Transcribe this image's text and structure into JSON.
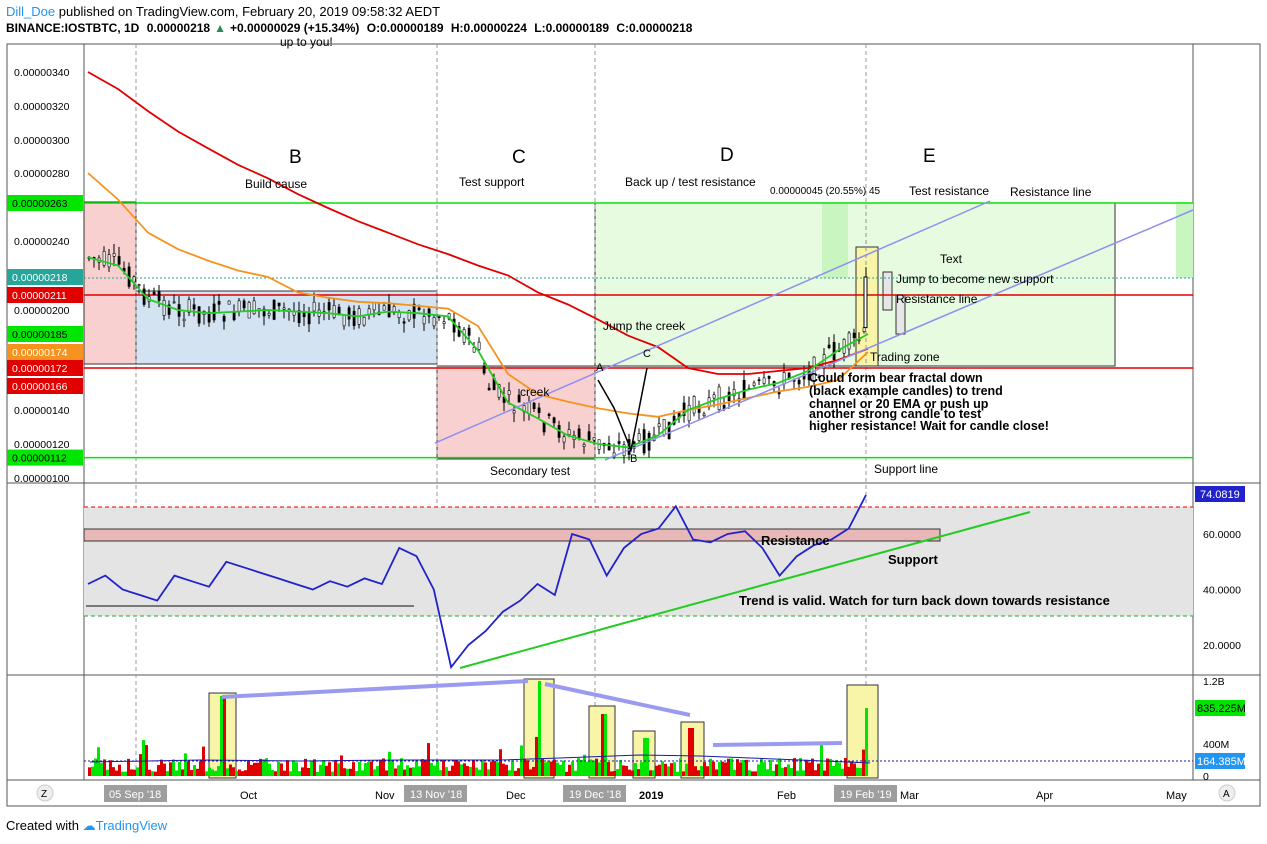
{
  "header": {
    "user": "Dill_Doe",
    "published": "published on TradingView.com, February 20, 2019 09:58:32 AEDT",
    "symbol": "BINANCE:IOSTBTC, 1D",
    "last": "0.00000218",
    "change_arrow": "▲",
    "change": "+0.00000029 (+15.34%)",
    "o_label": "O:",
    "o": "0.00000189",
    "h_label": "H:",
    "h": "0.00000224",
    "l_label": "L:",
    "l": "0.00000189",
    "c_label": "C:",
    "c": "0.00000218"
  },
  "top_cut_text": "up to you!",
  "colors": {
    "green_line": "#00e600",
    "red_line": "#e00000",
    "ema_fast": "#22cc22",
    "ema_mid": "#f5931e",
    "ema_slow": "#e00000",
    "channel": "#8f8ff0",
    "rsi": "#2222cc",
    "highlight_blue": "#2196f3"
  },
  "chart_data": [
    {
      "type": "line",
      "title": "",
      "ylim": [
        1e-06,
        3.5e-06
      ],
      "y_ticks": [
        "0.00000340",
        "0.00000320",
        "0.00000300",
        "0.00000280",
        "0.00000240",
        "0.00000200",
        "0.00000140",
        "0.00000120",
        "0.00000100"
      ],
      "price_badges": [
        {
          "label": "0.00000263",
          "value": 2.63e-06,
          "color": "#00e600"
        },
        {
          "label": "0.00000218",
          "value": 2.18e-06,
          "color": "#26a69a"
        },
        {
          "label": "0.00000211",
          "value": 2.11e-06,
          "color": "#e00000"
        },
        {
          "label": "0.00000185",
          "value": 1.85e-06,
          "color": "#00e600"
        },
        {
          "label": "0.00000174",
          "value": 1.74e-06,
          "color": "#f5931e"
        },
        {
          "label": "0.00000172",
          "value": 1.72e-06,
          "color": "#e00000"
        },
        {
          "label": "0.00000166",
          "value": 1.66e-06,
          "color": "#e00000"
        },
        {
          "label": "0.00000112",
          "value": 1.12e-06,
          "color": "#00e600"
        }
      ],
      "horizontal_lines": [
        {
          "value": 2.63e-06,
          "color": "#00e600"
        },
        {
          "value": 2.11e-06,
          "color": "#e00000"
        },
        {
          "value": 1.72e-06,
          "color": "#e00000"
        },
        {
          "value": 1.12e-06,
          "color": "#00e600"
        }
      ],
      "series": [
        {
          "values": [
            3.43e-06,
            3.3e-06,
            3.17e-06,
            3.05e-06,
            2.95e-06,
            2.85e-06,
            2.77e-06,
            2.68e-06,
            2.6e-06,
            2.52e-06,
            2.45e-06,
            2.38e-06,
            2.32e-06,
            2.25e-06,
            2.19e-06,
            2.12e-06,
            2.04e-06,
            1.94e-06,
            1.84e-06,
            1.77e-06,
            1.72e-06,
            1.7e-06,
            1.7e-06,
            1.71e-06,
            1.72e-06,
            1.73e-06,
            1.76e-06
          ]
        },
        {
          "values": [
            2.8e-06,
            2.65e-06,
            2.45e-06,
            2.35e-06,
            2.28e-06,
            2.22e-06,
            2.18e-06,
            2.12e-06,
            2.09e-06,
            2.06e-06,
            2.05e-06,
            2.03e-06,
            2.01e-06,
            1.9e-06,
            1.7e-06,
            1.57e-06,
            1.49e-06,
            1.42e-06,
            1.38e-06,
            1.36e-06,
            1.4e-06,
            1.46e-06,
            1.53e-06,
            1.6e-06,
            1.65e-06,
            1.68e-06,
            1.74e-06
          ]
        },
        {
          "values": [
            2.3e-06,
            2.25e-06,
            2.08e-06,
            2e-06,
            1.98e-06,
            1.99e-06,
            2e-06,
            1.99e-06,
            1.98e-06,
            1.96e-06,
            1.99e-06,
            1.98e-06,
            1.96e-06,
            1.75e-06,
            1.48e-06,
            1.35e-06,
            1.25e-06,
            1.2e-06,
            1.18e-06,
            1.25e-06,
            1.4e-06,
            1.52e-06,
            1.62e-06,
            1.67e-06,
            1.71e-06,
            1.75e-06,
            1.85e-06
          ]
        }
      ],
      "annotations": {
        "wave_letters": [
          "B",
          "C",
          "D",
          "E"
        ],
        "b_label": "Build cause",
        "c_label": "Test support",
        "d_label": "Back up / test resistance",
        "measure": "0.00000045 (20.55%) 45",
        "test_resistance": "Test resistance",
        "resistance_line": "Resistance line",
        "text": "Text",
        "jump_support": "Jump to become new support",
        "resistance_line2": "Resistance line",
        "jump_creek": "Jump the creek",
        "creek": "creek",
        "trading_zone": "Trading zone",
        "secondary_test": "Secondary test",
        "support_line": "Support line",
        "point_a": "A",
        "point_b": "B",
        "point_c": "C",
        "note": [
          "Could form bear fractal down",
          "(black example candles) to trend",
          "channel or 20 EMA or push up",
          "another strong candle to test",
          "higher resistance! Wait for candle close!"
        ]
      }
    },
    {
      "type": "line",
      "title": "",
      "ylim": [
        10,
        80
      ],
      "y_ticks": [
        "60.0000",
        "40.0000",
        "20.0000"
      ],
      "current_badge": "74.0819",
      "levels": [
        70,
        30
      ],
      "series": [
        {
          "values": [
            42,
            45,
            40,
            38,
            36,
            45,
            43,
            41,
            50,
            48,
            46,
            44,
            42,
            40,
            43,
            41,
            44,
            42,
            55,
            52,
            40,
            12,
            20,
            25,
            32,
            36,
            42,
            38,
            60,
            58,
            45,
            55,
            60,
            62,
            70,
            58,
            57,
            60,
            61,
            55,
            45,
            52,
            56,
            58,
            62,
            74
          ]
        }
      ],
      "annotations": {
        "resistance": "Resistance",
        "support": "Support",
        "trend": "Trend is valid. Watch for turn back down towards resistance"
      }
    },
    {
      "type": "bar",
      "title": "",
      "y_ticks": [
        "1.2B",
        "400M",
        "0"
      ],
      "badges": [
        {
          "label": "835.225M",
          "color": "#00e600"
        },
        {
          "label": "164.385M",
          "color": "#2196f3"
        }
      ]
    }
  ],
  "x_axis": {
    "labels": [
      "Oct",
      "Nov",
      "Dec",
      "2019",
      "Feb",
      "Mar",
      "Apr",
      "May"
    ],
    "highlighted": [
      "05 Sep '18",
      "13 Nov '18",
      "19 Dec '18",
      "19 Feb '19"
    ]
  },
  "footer": {
    "created": "Created with",
    "brand": "TradingView"
  },
  "corner_icons": {
    "left": "Z",
    "right": "A"
  }
}
